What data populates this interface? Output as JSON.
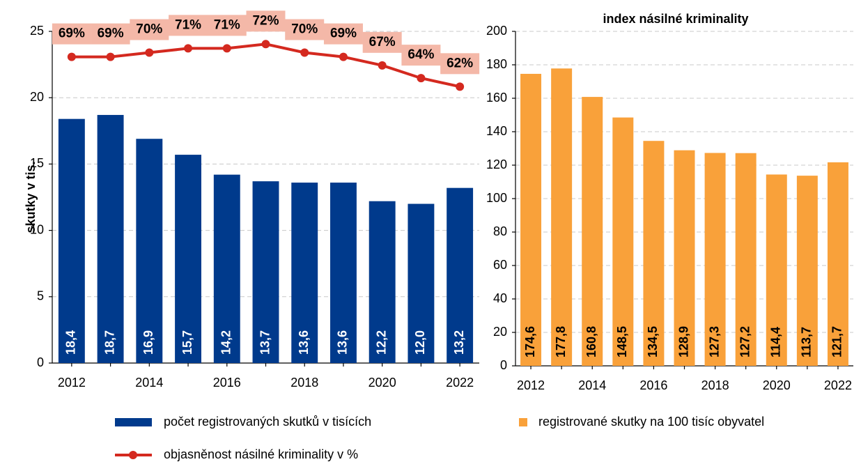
{
  "chart_data": [
    {
      "type": "bar",
      "y_label": "skutky v tis.",
      "categories": [
        "2012",
        null,
        "2014",
        null,
        "2016",
        null,
        "2018",
        null,
        "2020",
        null,
        "2022"
      ],
      "ylim": [
        0,
        25
      ],
      "yticks": [
        0,
        5,
        10,
        15,
        20,
        25
      ],
      "y2lim": [
        -3,
        75
      ],
      "grid": true,
      "series": [
        {
          "name": "počet registrovaných skutků v tisících",
          "type": "bar",
          "color": "#003a8c",
          "values": [
            18.4,
            18.7,
            16.9,
            15.7,
            14.2,
            13.7,
            13.6,
            13.6,
            12.2,
            12.0,
            13.2
          ],
          "value_labels": [
            "18,4",
            "18,7",
            "16,9",
            "15,7",
            "14,2",
            "13,7",
            "13,6",
            "13,6",
            "12,2",
            "12,0",
            "13,2"
          ]
        },
        {
          "name": "objasněnost násilné kriminality v %",
          "type": "line",
          "color": "#d4291f",
          "axis": "y2",
          "values": [
            69,
            69,
            70,
            71,
            71,
            72,
            70,
            69,
            67,
            64,
            62
          ],
          "value_labels": [
            "69%",
            "69%",
            "70%",
            "71%",
            "71%",
            "72%",
            "70%",
            "69%",
            "67%",
            "64%",
            "62%"
          ]
        }
      ]
    },
    {
      "type": "bar",
      "title": "index násilné kriminality",
      "categories": [
        "2012",
        null,
        "2014",
        null,
        "2016",
        null,
        "2018",
        null,
        "2020",
        null,
        "2022"
      ],
      "ylim": [
        0,
        200
      ],
      "yticks": [
        0,
        20,
        40,
        60,
        80,
        100,
        120,
        140,
        160,
        180,
        200
      ],
      "grid": true,
      "series": [
        {
          "name": "registrované skutky na 100 tisíc obyvatel",
          "type": "bar",
          "color": "#f9a13a",
          "values": [
            174.6,
            177.8,
            160.8,
            148.5,
            134.5,
            128.9,
            127.3,
            127.2,
            114.4,
            113.7,
            121.7
          ],
          "value_labels": [
            "174,6",
            "177,8",
            "160,8",
            "148,5",
            "134,5",
            "128,9",
            "127,3",
            "127,2",
            "114,4",
            "113,7",
            "121,7"
          ]
        }
      ]
    }
  ]
}
